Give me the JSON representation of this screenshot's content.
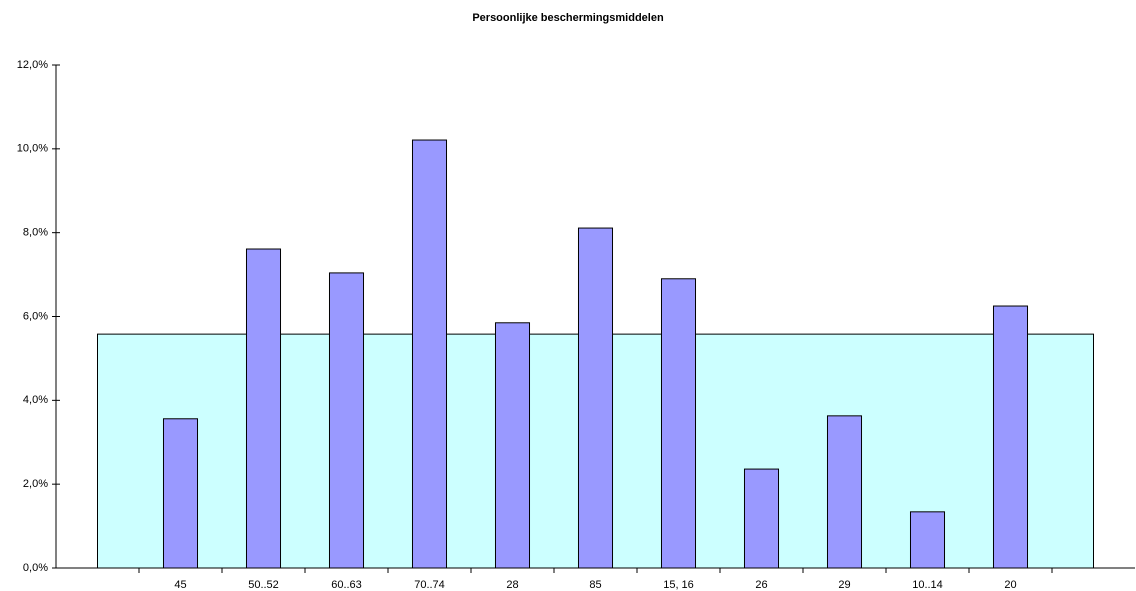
{
  "chart_data": {
    "type": "bar",
    "title": "Persoonlijke beschermingsmiddelen",
    "categories": [
      null,
      "45",
      "50..52",
      "60..63",
      "70..74",
      "28",
      "85",
      "15, 16",
      "26",
      "29",
      "10..14",
      "20",
      null
    ],
    "series": [
      {
        "type": "area",
        "color": "#ccffff",
        "values": [
          5.58,
          5.58,
          5.58,
          5.58,
          5.58,
          5.58,
          5.58,
          5.58,
          5.58,
          5.58,
          5.58,
          5.58,
          5.58
        ]
      },
      {
        "type": "bar",
        "color": "#9999ff",
        "values": [
          null,
          3.56,
          7.61,
          7.04,
          10.21,
          5.85,
          8.11,
          6.9,
          2.36,
          3.63,
          1.34,
          6.25,
          null
        ]
      }
    ],
    "ylim": [
      0,
      12
    ],
    "yticks": [
      {
        "value": 0,
        "label": "0,0%"
      },
      {
        "value": 2,
        "label": "2,0%"
      },
      {
        "value": 4,
        "label": "4,0%"
      },
      {
        "value": 6,
        "label": "6,0%"
      },
      {
        "value": 8,
        "label": "8,0%"
      },
      {
        "value": 10,
        "label": "10,0%"
      },
      {
        "value": 12,
        "label": "12,0%"
      }
    ],
    "grid": false
  }
}
